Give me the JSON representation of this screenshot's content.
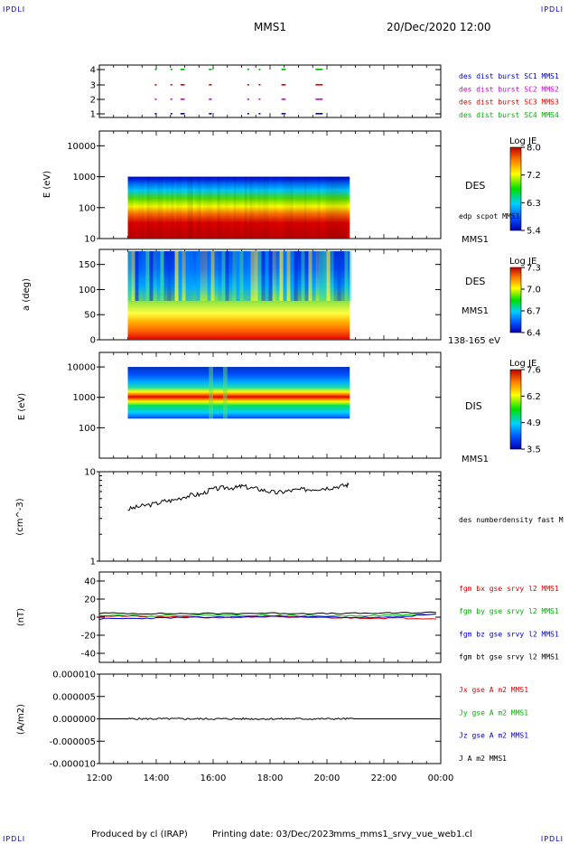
{
  "header": {
    "corner_left": "IPDLI",
    "corner_right": "IPDLI",
    "title": "MMS1",
    "datetime": "20/Dec/2020 12:00",
    "corner_bottom_left": "IPDLI",
    "corner_bottom_right": "IPDLI"
  },
  "footer": {
    "produced": "Produced by cl (IRAP)",
    "printing": "Printing date: 03/Dec/2023",
    "file": "mms_mms1_srvy_vue_web1.cl"
  },
  "time_axis": {
    "labels": [
      "12:00",
      "14:00",
      "16:00",
      "18:00",
      "20:00",
      "22:00",
      "00:00"
    ],
    "range_hours": [
      12,
      24
    ]
  },
  "colors": {
    "red": "#e00000",
    "green": "#00b000",
    "blue": "#0000cc",
    "magenta": "#d000d0",
    "black": "#000000"
  },
  "chart_data": [
    {
      "type": "scatter",
      "name": "burst-intervals",
      "yticks": [
        "4",
        "3",
        "2",
        "1"
      ],
      "legend": [
        {
          "label": "des dist burst SC1 MMS1",
          "color": "#0000cc"
        },
        {
          "label": "des dist burst SC2 MMS2",
          "color": "#d000d0"
        },
        {
          "label": "des dist burst SC3 MMS3",
          "color": "#e00000"
        },
        {
          "label": "des dist burst SC4 MMS4",
          "color": "#00b000"
        }
      ],
      "intervals_hours": [
        [
          13.95,
          14.0
        ],
        [
          14.5,
          14.55
        ],
        [
          14.85,
          15.0
        ],
        [
          15.85,
          15.95
        ],
        [
          17.2,
          17.25
        ],
        [
          17.6,
          17.65
        ],
        [
          18.4,
          18.55
        ],
        [
          19.6,
          19.85
        ]
      ]
    },
    {
      "type": "heatmap",
      "name": "des-energy",
      "ylabel": "E (eV)",
      "yticks": [
        "10000",
        "1000",
        "100",
        "10"
      ],
      "ylim": [
        10,
        30000
      ],
      "time_range": [
        13.0,
        20.8
      ],
      "colorbar": {
        "title": "Log JE",
        "ticks": [
          "8.0",
          "7.2",
          "6.3",
          "5.4"
        ]
      },
      "label": "DES",
      "sublabel": "edp scpot MMS1",
      "sc": "MMS1"
    },
    {
      "type": "heatmap",
      "name": "des-pitch-angle",
      "ylabel": "a (deg)",
      "yticks": [
        "150",
        "100",
        "50",
        "0"
      ],
      "ylim": [
        0,
        180
      ],
      "time_range": [
        13.0,
        20.8
      ],
      "colorbar": {
        "title": "Log JE",
        "ticks": [
          "7.3",
          "7.0",
          "6.7",
          "6.4"
        ]
      },
      "label": "DES",
      "sc": "MMS1",
      "energy_range": "138-165 eV"
    },
    {
      "type": "heatmap",
      "name": "dis-energy",
      "ylabel": "E (eV)",
      "yticks": [
        "10000",
        "1000",
        "100"
      ],
      "ylim": [
        10,
        30000
      ],
      "time_range": [
        13.0,
        20.8
      ],
      "colorbar": {
        "title": "Log JE",
        "ticks": [
          "7.6",
          "6.2",
          "4.9",
          "3.5"
        ]
      },
      "label": "DIS",
      "sc": "MMS1"
    },
    {
      "type": "line",
      "name": "number-density",
      "ylabel": "(cm^-3)",
      "yticks": [
        "10",
        "1"
      ],
      "ylim": [
        1,
        10
      ],
      "log": true,
      "series": [
        {
          "name": "des numberdensity fast M",
          "color": "#000000",
          "x": [
            13.0,
            13.3,
            13.6,
            14.0,
            14.3,
            14.6,
            15.0,
            15.3,
            15.6,
            15.9,
            16.2,
            16.5,
            16.8,
            17.0,
            17.3,
            17.6,
            17.9,
            18.2,
            18.5,
            18.8,
            19.1,
            19.4,
            19.7,
            20.0,
            20.3,
            20.6,
            20.8
          ],
          "y": [
            3.8,
            4.0,
            4.2,
            4.4,
            4.7,
            4.8,
            5.3,
            5.5,
            5.6,
            6.3,
            6.5,
            6.7,
            6.6,
            6.9,
            6.6,
            6.4,
            6.1,
            5.8,
            6.0,
            6.2,
            6.3,
            6.4,
            6.5,
            6.6,
            6.8,
            7.0,
            7.2
          ]
        }
      ]
    },
    {
      "type": "line",
      "name": "fgm-b",
      "ylabel": "(nT)",
      "yticks": [
        "40",
        "20",
        "0",
        "-20",
        "-40"
      ],
      "ylim": [
        -50,
        50
      ],
      "series": [
        {
          "name": "fgm bx gse srvy l2 MMS1",
          "color": "#e00000",
          "x": [
            12.0,
            14.0,
            16.0,
            18.0,
            20.0,
            22.0,
            24.0
          ],
          "y": [
            1.5,
            0.5,
            -0.5,
            0.5,
            -0.5,
            -1.0,
            -1.5
          ]
        },
        {
          "name": "fgm by gse srvy l2 MMS1",
          "color": "#00b000",
          "x": [
            12.0,
            14.0,
            16.0,
            18.0,
            20.0,
            22.0,
            24.0
          ],
          "y": [
            2.5,
            1.5,
            2.5,
            2.0,
            1.5,
            2.0,
            3.5
          ]
        },
        {
          "name": "fgm bz gse srvy l2 MMS1",
          "color": "#0000cc",
          "x": [
            12.0,
            14.0,
            16.0,
            18.0,
            20.0,
            22.0,
            24.0
          ],
          "y": [
            -2.0,
            -1.0,
            0.0,
            1.0,
            0.0,
            -0.5,
            3.5
          ]
        },
        {
          "name": "fgm bt gse srvy l2 MMS1",
          "color": "#000000",
          "x": [
            12.0,
            14.0,
            16.0,
            18.0,
            20.0,
            22.0,
            24.0
          ],
          "y": [
            4.5,
            4.0,
            4.0,
            4.5,
            4.0,
            4.5,
            5.5
          ]
        }
      ]
    },
    {
      "type": "line",
      "name": "current-density",
      "ylabel": "(A/m2)",
      "yticks": [
        "0.000010",
        "0.000005",
        "0.000000",
        "-0.000005",
        "-0.000010"
      ],
      "ylim": [
        -1e-05,
        1e-05
      ],
      "series": [
        {
          "name": "Jx gse A m2 MMS1",
          "color": "#e00000",
          "x": [
            12,
            24
          ],
          "y": [
            0,
            0
          ]
        },
        {
          "name": "Jy gse A m2 MMS1",
          "color": "#00b000",
          "x": [
            12,
            24
          ],
          "y": [
            0,
            0
          ]
        },
        {
          "name": "Jz gse A m2 MMS1",
          "color": "#0000cc",
          "x": [
            12,
            24
          ],
          "y": [
            0,
            0
          ]
        },
        {
          "name": "J A m2 MMS1",
          "color": "#000000",
          "x": [
            12,
            24
          ],
          "y": [
            0,
            0
          ]
        }
      ]
    }
  ]
}
